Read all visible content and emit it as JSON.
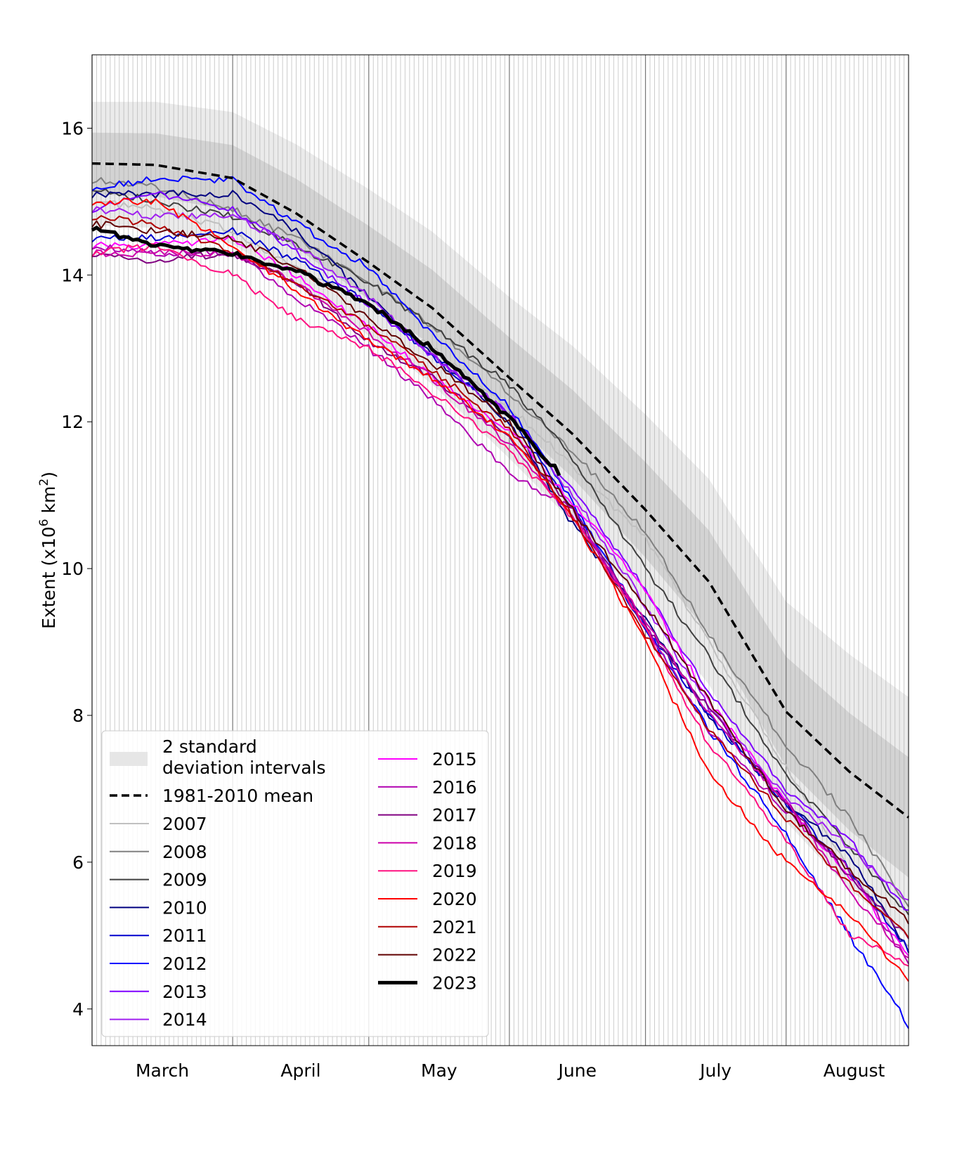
{
  "chart_data": {
    "type": "line",
    "title": "",
    "xlabel": "",
    "ylabel": "Extent (x10",
    "ylabel_sup1": "6",
    "ylabel_mid": " km",
    "ylabel_sup2": "2",
    "ylabel_end": ")",
    "ylim": [
      3.5,
      17.0
    ],
    "yticks": [
      4,
      6,
      8,
      10,
      12,
      14,
      16
    ],
    "xrange": [
      "03-01",
      "08-28"
    ],
    "month_ticks": [
      {
        "label": "March",
        "start": "03-01"
      },
      {
        "label": "April",
        "start": "04-01"
      },
      {
        "label": "May",
        "start": "05-01"
      },
      {
        "label": "June",
        "start": "06-01"
      },
      {
        "label": "July",
        "start": "07-01"
      },
      {
        "label": "August",
        "start": "08-01"
      }
    ],
    "grid": "daily vertical lines, darker at month boundaries",
    "legend_placement": "lower-left",
    "x": [
      "03-01",
      "03-15",
      "04-01",
      "04-15",
      "05-01",
      "05-15",
      "06-01",
      "06-15",
      "07-01",
      "07-15",
      "08-01",
      "08-15",
      "08-28"
    ],
    "mean": {
      "name": "1981-2010 mean",
      "color": "#000000",
      "style": "dashed",
      "values": [
        15.52,
        15.5,
        15.32,
        14.84,
        14.17,
        13.55,
        12.6,
        11.83,
        10.8,
        9.82,
        8.05,
        7.23,
        6.61
      ]
    },
    "std_band": {
      "name": "2 standard deviation intervals",
      "inner_color": "#d3d3d3",
      "outer_color": "#ebebeb",
      "sigma": [
        0.42,
        0.43,
        0.45,
        0.47,
        0.5,
        0.52,
        0.55,
        0.6,
        0.65,
        0.7,
        0.75,
        0.8,
        0.82
      ]
    },
    "series": [
      {
        "name": "2007",
        "color": "#c0c0c0",
        "values": [
          15.0,
          14.9,
          14.6,
          14.1,
          13.6,
          13.0,
          12.2,
          11.4,
          10.4,
          9.0,
          7.3,
          5.9,
          4.85
        ]
      },
      {
        "name": "2008",
        "color": "#808080",
        "values": [
          15.3,
          15.2,
          14.9,
          14.5,
          13.9,
          13.3,
          12.4,
          11.6,
          10.5,
          9.1,
          7.6,
          6.6,
          5.4
        ]
      },
      {
        "name": "2009",
        "color": "#404040",
        "values": [
          15.2,
          15.0,
          14.8,
          14.4,
          13.9,
          13.3,
          12.5,
          11.5,
          10.0,
          8.8,
          7.2,
          6.2,
          5.3
        ]
      },
      {
        "name": "2010",
        "color": "#000080",
        "values": [
          15.1,
          15.1,
          15.1,
          14.6,
          13.7,
          12.9,
          12.0,
          10.6,
          9.3,
          8.0,
          6.8,
          6.1,
          4.8
        ]
      },
      {
        "name": "2011",
        "color": "#0000cd",
        "values": [
          14.5,
          14.5,
          14.6,
          14.2,
          13.6,
          12.9,
          12.1,
          10.8,
          9.2,
          8.0,
          6.8,
          5.9,
          4.8
        ]
      },
      {
        "name": "2012",
        "color": "#0000ff",
        "values": [
          15.2,
          15.3,
          15.3,
          14.7,
          14.1,
          13.2,
          12.2,
          10.9,
          9.2,
          7.8,
          6.4,
          5.0,
          3.78
        ]
      },
      {
        "name": "2013",
        "color": "#7f00ff",
        "values": [
          14.9,
          15.1,
          14.9,
          14.3,
          13.6,
          12.9,
          12.1,
          11.1,
          9.7,
          8.3,
          7.0,
          6.3,
          5.3
        ]
      },
      {
        "name": "2014",
        "color": "#a020f0",
        "values": [
          14.9,
          14.8,
          14.8,
          14.4,
          13.7,
          12.9,
          12.1,
          11.0,
          9.5,
          8.1,
          6.9,
          6.2,
          5.45
        ]
      },
      {
        "name": "2015",
        "color": "#ff00ff",
        "values": [
          14.4,
          14.4,
          14.5,
          14.0,
          13.3,
          12.6,
          11.9,
          10.9,
          9.7,
          8.2,
          6.8,
          5.8,
          4.7
        ]
      },
      {
        "name": "2016",
        "color": "#b000b0",
        "values": [
          14.4,
          14.3,
          14.3,
          13.7,
          13.0,
          12.3,
          11.3,
          10.8,
          9.2,
          7.8,
          6.7,
          5.9,
          4.6
        ]
      },
      {
        "name": "2017",
        "color": "#800080",
        "values": [
          14.3,
          14.2,
          14.3,
          13.9,
          13.1,
          12.6,
          11.8,
          10.8,
          9.2,
          8.1,
          6.8,
          5.8,
          4.95
        ]
      },
      {
        "name": "2018",
        "color": "#cc00aa",
        "values": [
          14.3,
          14.3,
          14.3,
          13.9,
          13.2,
          12.6,
          11.7,
          10.7,
          9.3,
          8.0,
          6.8,
          5.6,
          4.7
        ]
      },
      {
        "name": "2019",
        "color": "#ff1080",
        "values": [
          14.3,
          14.4,
          14.0,
          13.4,
          13.0,
          12.4,
          11.6,
          10.7,
          9.2,
          7.6,
          6.3,
          5.0,
          4.6
        ]
      },
      {
        "name": "2020",
        "color": "#ff0000",
        "values": [
          15.0,
          15.0,
          14.4,
          13.8,
          13.1,
          12.6,
          11.8,
          10.7,
          9.0,
          7.2,
          6.0,
          5.3,
          4.4
        ]
      },
      {
        "name": "2021",
        "color": "#b00000",
        "values": [
          14.8,
          14.7,
          14.3,
          13.9,
          13.3,
          12.7,
          11.9,
          10.7,
          9.1,
          7.8,
          6.6,
          5.7,
          5.0
        ]
      },
      {
        "name": "2022",
        "color": "#600000",
        "values": [
          14.7,
          14.6,
          14.5,
          14.1,
          13.4,
          12.8,
          12.0,
          10.8,
          9.5,
          8.2,
          6.7,
          5.9,
          5.2
        ]
      },
      {
        "name": "2023",
        "color": "#000000",
        "bold": true,
        "x": [
          "03-01",
          "03-15",
          "04-01",
          "04-15",
          "05-01",
          "05-15",
          "06-01",
          "06-12"
        ],
        "values": [
          14.65,
          14.4,
          14.3,
          14.05,
          13.6,
          13.0,
          12.05,
          11.3
        ]
      }
    ],
    "legend": {
      "band_label_1": "2 standard",
      "band_label_2": "deviation intervals",
      "mean_label": "1981-2010 mean"
    }
  }
}
